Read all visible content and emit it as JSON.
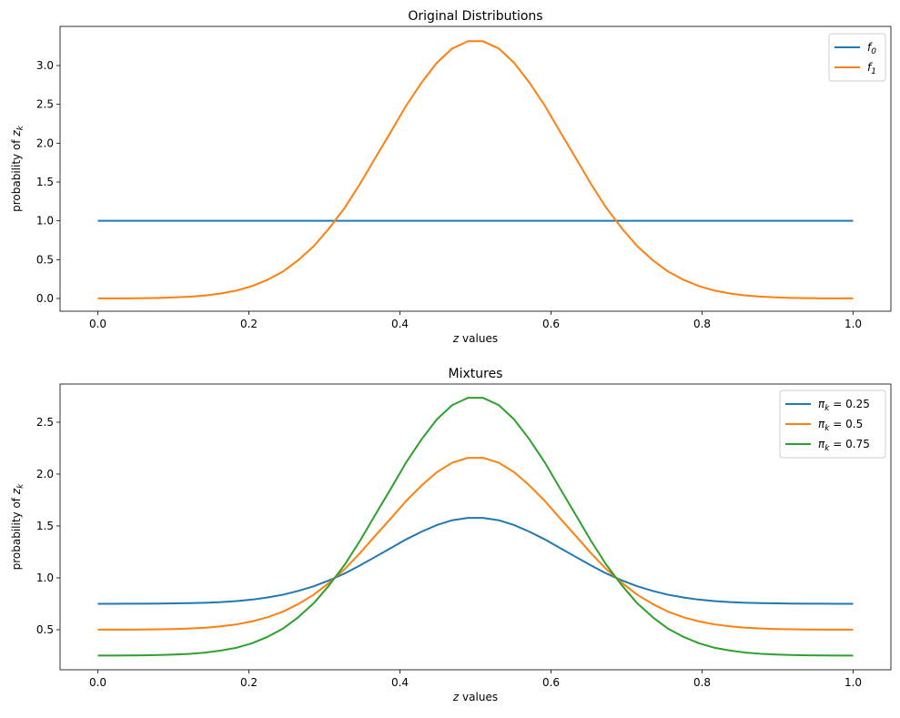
{
  "chart_data": [
    {
      "type": "line",
      "title": "Original Distributions",
      "xlabel": {
        "var": "z",
        "rest": " values"
      },
      "ylabel": {
        "pre": "probability of ",
        "var": "z",
        "sub": "k"
      },
      "xlim": [
        -0.05,
        1.05
      ],
      "ylim": [
        -0.164,
        3.504
      ],
      "xticks": [
        "0.0",
        "0.2",
        "0.4",
        "0.6",
        "0.8",
        "1.0"
      ],
      "yticks": [
        "0.0",
        "0.5",
        "1.0",
        "1.5",
        "2.0",
        "2.5",
        "3.0"
      ],
      "grid": false,
      "legend_position": "top-right",
      "x": [
        0,
        0.02,
        0.041,
        0.061,
        0.082,
        0.102,
        0.122,
        0.143,
        0.163,
        0.184,
        0.204,
        0.224,
        0.245,
        0.265,
        0.286,
        0.306,
        0.327,
        0.347,
        0.367,
        0.388,
        0.408,
        0.429,
        0.449,
        0.469,
        0.49,
        0.51,
        0.531,
        0.551,
        0.571,
        0.592,
        0.612,
        0.633,
        0.653,
        0.673,
        0.694,
        0.714,
        0.735,
        0.755,
        0.776,
        0.796,
        0.816,
        0.837,
        0.857,
        0.878,
        0.898,
        0.918,
        0.939,
        0.959,
        0.98,
        1.0
      ],
      "series": [
        {
          "name": {
            "base": "f",
            "sub": "0",
            "rest": ""
          },
          "color": "#1f77b4",
          "values": [
            1,
            1,
            1,
            1,
            1,
            1,
            1,
            1,
            1,
            1,
            1,
            1,
            1,
            1,
            1,
            1,
            1,
            1,
            1,
            1,
            1,
            1,
            1,
            1,
            1,
            1,
            1,
            1,
            1,
            1,
            1,
            1,
            1,
            1,
            1,
            1,
            1,
            1,
            1,
            1,
            1,
            1,
            1,
            1,
            1,
            1,
            1,
            1,
            1,
            1
          ]
        },
        {
          "name": {
            "base": "f",
            "sub": "1",
            "rest": ""
          },
          "color": "#ff7f0e",
          "values": [
            0.001,
            0.001,
            0.002,
            0.004,
            0.008,
            0.014,
            0.024,
            0.04,
            0.065,
            0.103,
            0.159,
            0.238,
            0.347,
            0.491,
            0.675,
            0.901,
            1.17,
            1.474,
            1.805,
            2.147,
            2.48,
            2.785,
            3.037,
            3.218,
            3.313,
            3.313,
            3.218,
            3.037,
            2.785,
            2.48,
            2.147,
            1.805,
            1.474,
            1.17,
            0.901,
            0.675,
            0.491,
            0.347,
            0.238,
            0.159,
            0.103,
            0.065,
            0.04,
            0.024,
            0.014,
            0.008,
            0.004,
            0.002,
            0.001,
            0.001
          ]
        }
      ]
    },
    {
      "type": "line",
      "title": "Mixtures",
      "xlabel": {
        "var": "z",
        "rest": " values"
      },
      "ylabel": {
        "pre": "probability of ",
        "var": "z",
        "sub": "k"
      },
      "xlim": [
        -0.05,
        1.05
      ],
      "ylim": [
        0.114,
        2.868
      ],
      "xticks": [
        "0.0",
        "0.2",
        "0.4",
        "0.6",
        "0.8",
        "1.0"
      ],
      "yticks": [
        "0.5",
        "1.0",
        "1.5",
        "2.0",
        "2.5"
      ],
      "grid": false,
      "legend_position": "top-right",
      "x": [
        0,
        0.02,
        0.041,
        0.061,
        0.082,
        0.102,
        0.122,
        0.143,
        0.163,
        0.184,
        0.204,
        0.224,
        0.245,
        0.265,
        0.286,
        0.306,
        0.327,
        0.347,
        0.367,
        0.388,
        0.408,
        0.429,
        0.449,
        0.469,
        0.49,
        0.51,
        0.531,
        0.551,
        0.571,
        0.592,
        0.612,
        0.633,
        0.653,
        0.673,
        0.694,
        0.714,
        0.735,
        0.755,
        0.776,
        0.796,
        0.816,
        0.837,
        0.857,
        0.878,
        0.898,
        0.918,
        0.939,
        0.959,
        0.98,
        1.0
      ],
      "series": [
        {
          "name": {
            "base": "π",
            "sub": "k",
            "rest": " = 0.25"
          },
          "color": "#1f77b4",
          "values": [
            0.75,
            0.75,
            0.751,
            0.751,
            0.752,
            0.754,
            0.756,
            0.76,
            0.766,
            0.776,
            0.79,
            0.81,
            0.837,
            0.873,
            0.919,
            0.975,
            1.043,
            1.119,
            1.201,
            1.287,
            1.37,
            1.446,
            1.509,
            1.555,
            1.578,
            1.578,
            1.555,
            1.509,
            1.446,
            1.37,
            1.287,
            1.201,
            1.119,
            1.043,
            0.975,
            0.919,
            0.873,
            0.837,
            0.81,
            0.79,
            0.776,
            0.766,
            0.76,
            0.756,
            0.754,
            0.752,
            0.751,
            0.751,
            0.75,
            0.75
          ]
        },
        {
          "name": {
            "base": "π",
            "sub": "k",
            "rest": " = 0.5"
          },
          "color": "#ff7f0e",
          "values": [
            0.501,
            0.501,
            0.501,
            0.502,
            0.504,
            0.507,
            0.512,
            0.52,
            0.533,
            0.552,
            0.58,
            0.619,
            0.674,
            0.746,
            0.838,
            0.951,
            1.085,
            1.237,
            1.403,
            1.574,
            1.74,
            1.893,
            2.019,
            2.109,
            2.157,
            2.157,
            2.109,
            2.019,
            1.893,
            1.74,
            1.574,
            1.403,
            1.237,
            1.085,
            0.951,
            0.838,
            0.746,
            0.674,
            0.619,
            0.58,
            0.552,
            0.533,
            0.52,
            0.512,
            0.507,
            0.504,
            0.502,
            0.501,
            0.501,
            0.501
          ]
        },
        {
          "name": {
            "base": "π",
            "sub": "k",
            "rest": " = 0.75"
          },
          "color": "#2ca02c",
          "values": [
            0.251,
            0.251,
            0.252,
            0.253,
            0.256,
            0.261,
            0.268,
            0.28,
            0.299,
            0.327,
            0.369,
            0.429,
            0.51,
            0.618,
            0.756,
            0.926,
            1.128,
            1.356,
            1.604,
            1.86,
            2.11,
            2.339,
            2.528,
            2.664,
            2.735,
            2.735,
            2.664,
            2.528,
            2.339,
            2.11,
            1.86,
            1.604,
            1.356,
            1.128,
            0.926,
            0.756,
            0.618,
            0.51,
            0.429,
            0.369,
            0.327,
            0.299,
            0.28,
            0.268,
            0.261,
            0.256,
            0.253,
            0.252,
            0.251,
            0.251
          ]
        }
      ]
    }
  ]
}
